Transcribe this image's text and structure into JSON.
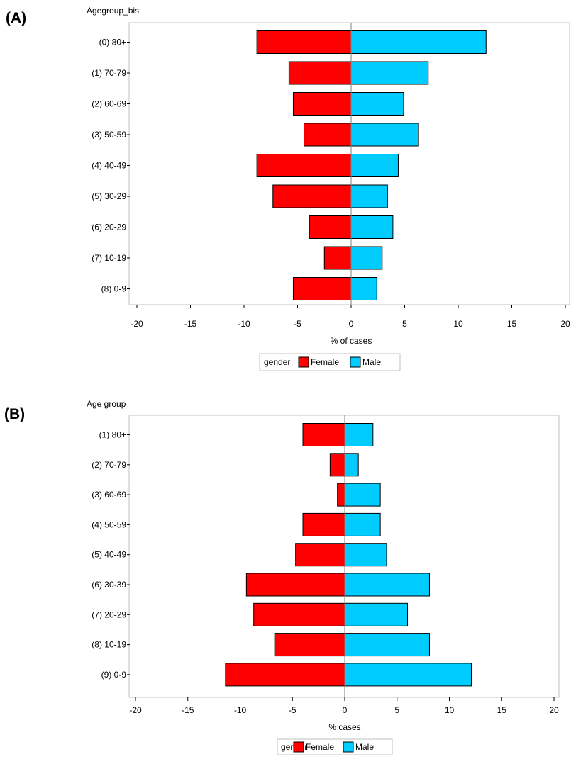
{
  "chart_data": [
    {
      "type": "bar",
      "orientation": "horizontal",
      "stacked": "diverging",
      "panel_label": "(A)",
      "title": "",
      "ylabel": "Agegroup_bis",
      "xlabel": "% of cases",
      "xlim": [
        -20,
        20
      ],
      "xticks": [
        "-20",
        "-15",
        "-10",
        "-5",
        "0",
        "5",
        "10",
        "15",
        "20"
      ],
      "categories": [
        "(0) 80+",
        "(1) 70-79",
        "(2) 60-69",
        "(3) 50-59",
        "(4) 40-49",
        "(5) 30-29",
        "(6) 20-29",
        "(7) 10-19",
        "(8) 0-9"
      ],
      "series": [
        {
          "name": "Female",
          "color": "#ff0000",
          "values": [
            -8.8,
            -5.8,
            -5.4,
            -4.4,
            -8.8,
            -7.3,
            -3.9,
            -2.5,
            -5.4
          ]
        },
        {
          "name": "Male",
          "color": "#00ccff",
          "values": [
            12.6,
            7.2,
            4.9,
            6.3,
            4.4,
            3.4,
            3.9,
            2.9,
            2.4
          ]
        }
      ],
      "legend": {
        "title": "gender",
        "position": "bottom",
        "entries": [
          "Female",
          "Male"
        ]
      },
      "grid": false
    },
    {
      "type": "bar",
      "orientation": "horizontal",
      "stacked": "diverging",
      "panel_label": "(B)",
      "title": "",
      "ylabel": "Age group",
      "xlabel": "% cases",
      "xlim": [
        -20,
        20
      ],
      "xticks": [
        "-20",
        "-15",
        "-10",
        "-5",
        "0",
        "5",
        "10",
        "15",
        "20"
      ],
      "categories": [
        "(1) 80+",
        "(2) 70-79",
        "(3) 60-69",
        "(4) 50-59",
        "(5) 40-49",
        "(6) 30-39",
        "(7) 20-29",
        "(8) 10-19",
        "(9) 0-9"
      ],
      "series": [
        {
          "name": "Female",
          "color": "#ff0000",
          "values": [
            -4.0,
            -1.4,
            -0.7,
            -4.0,
            -4.7,
            -9.4,
            -8.7,
            -6.7,
            -11.4
          ]
        },
        {
          "name": "Male",
          "color": "#00ccff",
          "values": [
            2.7,
            1.3,
            3.4,
            3.4,
            4.0,
            8.1,
            6.0,
            8.1,
            12.1
          ]
        }
      ],
      "legend": {
        "title": "gender",
        "position": "bottom",
        "entries": [
          "Female",
          "Male"
        ]
      },
      "grid": false
    }
  ]
}
